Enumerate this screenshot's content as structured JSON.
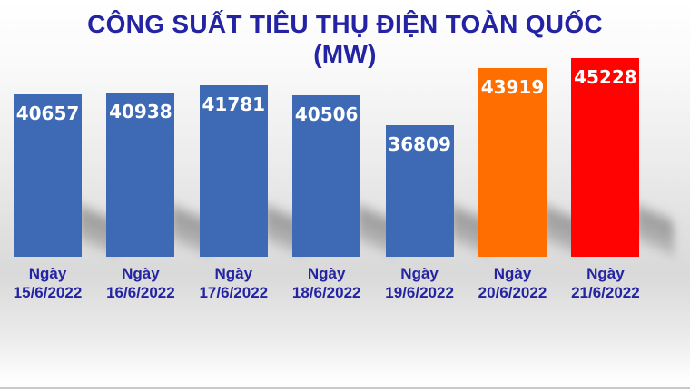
{
  "title": {
    "line1": "CÔNG SUẤT TIÊU THỤ ĐIỆN TOÀN QUỐC",
    "line2": "(MW)"
  },
  "chart_data": {
    "type": "bar",
    "title": "CÔNG SUẤT TIÊU THỤ ĐIỆN TOÀN QUỐC (MW)",
    "categories": [
      "Ngày 15/6/2022",
      "Ngày 16/6/2022",
      "Ngày 17/6/2022",
      "Ngày 18/6/2022",
      "Ngày 19/6/2022",
      "Ngày 20/6/2022",
      "Ngày 21/6/2022"
    ],
    "values": [
      40657,
      40938,
      41781,
      40506,
      36809,
      43919,
      45228
    ],
    "value_labels": [
      "40657",
      "40938",
      "41781",
      "40506",
      "36809",
      "43919",
      "45228"
    ],
    "bar_colors": [
      "#3E69B5",
      "#3E69B5",
      "#3E69B5",
      "#3E69B5",
      "#3E69B5",
      "#FF6E00",
      "#FF0202"
    ],
    "xlabel": "",
    "ylabel": "",
    "ylim": [
      20300,
      45228
    ],
    "grid": false,
    "legend_position": "none",
    "value_label_color": "#FFFFFF",
    "tick_label_color": "#2323A3",
    "title_color": "#2323A3",
    "shadow": "perspective-right"
  }
}
